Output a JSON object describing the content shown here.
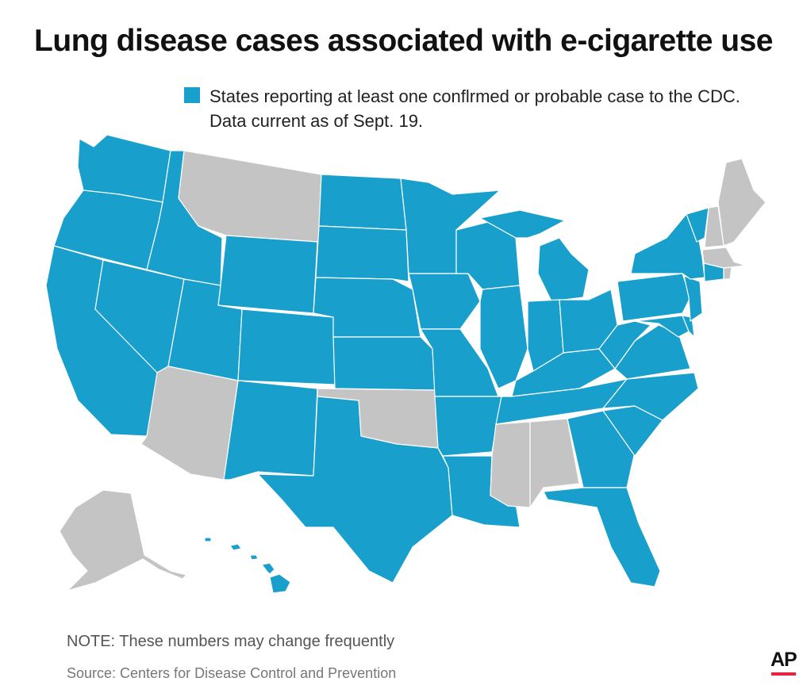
{
  "title": "Lung disease cases associated with e-cigarette use",
  "legend": {
    "line1": "States reporting at least one conflrmed or probable case to the CDC.",
    "line2": "Data current as of Sept. 19.",
    "color": "#199fcc"
  },
  "colors": {
    "reporting": "#199fcc",
    "not_reporting": "#c4c4c4",
    "border": "#ffffff",
    "ap_accent": "#e8213f"
  },
  "map_data": {
    "reporting_states": [
      "WA",
      "OR",
      "CA",
      "NV",
      "ID",
      "UT",
      "WY",
      "CO",
      "NM",
      "TX",
      "ND",
      "SD",
      "NE",
      "KS",
      "MN",
      "IA",
      "MO",
      "AR",
      "LA",
      "WI",
      "IL",
      "MI",
      "IN",
      "OH",
      "KY",
      "TN",
      "GA",
      "FL",
      "SC",
      "NC",
      "VA",
      "WV",
      "PA",
      "NY",
      "NJ",
      "DE",
      "MD",
      "DC",
      "CT",
      "VT",
      "HI"
    ],
    "not_reporting_states": [
      "MT",
      "AZ",
      "OK",
      "MS",
      "AL",
      "ME",
      "NH",
      "MA",
      "RI",
      "AK"
    ]
  },
  "note": "NOTE: These numbers may change frequently",
  "source": "Source: Centers for Disease Control and Prevention",
  "logo": "AP"
}
